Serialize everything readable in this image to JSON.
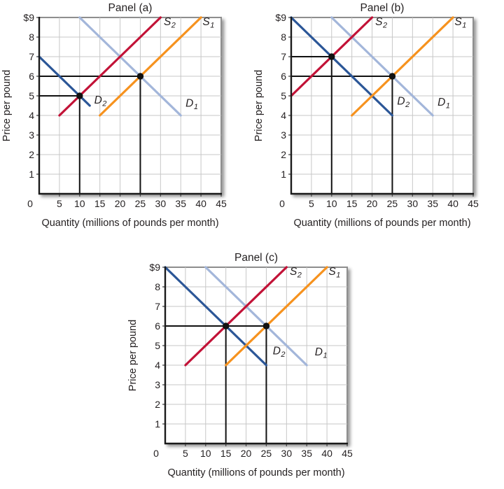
{
  "figure": {
    "description": "Three-panel supply and demand figure",
    "panel_titles": [
      "Panel (a)",
      "Panel (b)",
      "Panel (c)"
    ]
  },
  "colors": {
    "background": "#ffffff",
    "grid": "#c7c7c7",
    "plot_border": "#8e8e8e",
    "axis": "#1a1a1a",
    "reference_line": "#111111",
    "dot": "#111111",
    "text": "#231f20",
    "demand1_light_blue": "#a3b6da",
    "demand2_dark_blue": "#2b5697",
    "supply2_red": "#c21237",
    "supply1_orange": "#f6921e"
  },
  "chart_data": [
    {
      "type": "line",
      "title": "Panel (a)",
      "xlabel": "Quantity (millions of pounds per month)",
      "ylabel": "Price per pound",
      "xlim": [
        0,
        45
      ],
      "ylim": [
        0,
        9
      ],
      "grid": true,
      "xticks": [
        0,
        5,
        10,
        15,
        20,
        25,
        30,
        35,
        40,
        45
      ],
      "xtick_labels": [
        "0",
        "5",
        "10",
        "15",
        "20",
        "25",
        "30",
        "35",
        "40",
        "45"
      ],
      "yticks": [
        1,
        2,
        3,
        4,
        5,
        6,
        7,
        8,
        9
      ],
      "ytick_labels": [
        "1",
        "2",
        "3",
        "4",
        "5",
        "6",
        "7",
        "8",
        "$9"
      ],
      "series": [
        {
          "name": "D1",
          "label": {
            "base": "D",
            "sub": "1"
          },
          "color": "#a3b6da",
          "points": [
            [
              10,
              9
            ],
            [
              35,
              4
            ]
          ],
          "label_pos": [
            36.2,
            4.45
          ]
        },
        {
          "name": "D2",
          "label": {
            "base": "D",
            "sub": "2"
          },
          "color": "#2b5697",
          "points": [
            [
              0,
              7
            ],
            [
              12.5,
              4.5
            ]
          ],
          "label_pos": [
            13.6,
            4.6
          ]
        },
        {
          "name": "S2",
          "label": {
            "base": "S",
            "sub": "2"
          },
          "color": "#c21237",
          "points": [
            [
              5,
              4
            ],
            [
              30,
              9
            ]
          ],
          "label_pos": [
            30.8,
            8.6
          ]
        },
        {
          "name": "S1",
          "label": {
            "base": "S",
            "sub": "1"
          },
          "color": "#f6921e",
          "points": [
            [
              15,
              4
            ],
            [
              40,
              9
            ]
          ],
          "label_pos": [
            40.4,
            8.6
          ]
        }
      ],
      "equilibria": [
        {
          "x": 10,
          "y": 5
        },
        {
          "x": 25,
          "y": 6
        }
      ],
      "reference_lines": [
        {
          "type": "h",
          "y": 5,
          "x0": 0,
          "x1": 10
        },
        {
          "type": "v",
          "x": 10,
          "y0": 0,
          "y1": 5
        },
        {
          "type": "h",
          "y": 6,
          "x0": 0,
          "x1": 25
        },
        {
          "type": "v",
          "x": 25,
          "y0": 0,
          "y1": 6
        }
      ]
    },
    {
      "type": "line",
      "title": "Panel (b)",
      "xlabel": "Quantity (millions of pounds per month)",
      "ylabel": "Price per pound",
      "xlim": [
        0,
        45
      ],
      "ylim": [
        0,
        9
      ],
      "grid": true,
      "xticks": [
        0,
        5,
        10,
        15,
        20,
        25,
        30,
        35,
        40,
        45
      ],
      "xtick_labels": [
        "0",
        "5",
        "10",
        "15",
        "20",
        "25",
        "30",
        "35",
        "40",
        "45"
      ],
      "yticks": [
        1,
        2,
        3,
        4,
        5,
        6,
        7,
        8,
        9
      ],
      "ytick_labels": [
        "1",
        "2",
        "3",
        "4",
        "5",
        "6",
        "7",
        "8",
        "$9"
      ],
      "series": [
        {
          "name": "D1",
          "label": {
            "base": "D",
            "sub": "1"
          },
          "color": "#a3b6da",
          "points": [
            [
              10,
              9
            ],
            [
              35,
              4
            ]
          ],
          "label_pos": [
            36.2,
            4.5
          ]
        },
        {
          "name": "D2",
          "label": {
            "base": "D",
            "sub": "2"
          },
          "color": "#2b5697",
          "points": [
            [
              0,
              9
            ],
            [
              25,
              4
            ]
          ],
          "label_pos": [
            26.2,
            4.55
          ]
        },
        {
          "name": "S2",
          "label": {
            "base": "S",
            "sub": "2"
          },
          "color": "#c21237",
          "points": [
            [
              0,
              5
            ],
            [
              20,
              9
            ]
          ],
          "label_pos": [
            20.8,
            8.6
          ]
        },
        {
          "name": "S1",
          "label": {
            "base": "S",
            "sub": "1"
          },
          "color": "#f6921e",
          "points": [
            [
              15,
              4
            ],
            [
              40,
              9
            ]
          ],
          "label_pos": [
            40.4,
            8.6
          ]
        }
      ],
      "equilibria": [
        {
          "x": 10,
          "y": 7
        },
        {
          "x": 25,
          "y": 6
        }
      ],
      "reference_lines": [
        {
          "type": "h",
          "y": 7,
          "x0": 0,
          "x1": 10
        },
        {
          "type": "v",
          "x": 10,
          "y0": 0,
          "y1": 7
        },
        {
          "type": "h",
          "y": 6,
          "x0": 0,
          "x1": 25
        },
        {
          "type": "v",
          "x": 25,
          "y0": 0,
          "y1": 6
        }
      ]
    },
    {
      "type": "line",
      "title": "Panel (c)",
      "xlabel": "Quantity (millions of pounds per month)",
      "ylabel": "Price per pound",
      "xlim": [
        0,
        45
      ],
      "ylim": [
        0,
        9
      ],
      "grid": true,
      "xticks": [
        0,
        5,
        10,
        15,
        20,
        25,
        30,
        35,
        40,
        45
      ],
      "xtick_labels": [
        "0",
        "5",
        "10",
        "15",
        "20",
        "25",
        "30",
        "35",
        "40",
        "45"
      ],
      "yticks": [
        1,
        2,
        3,
        4,
        5,
        6,
        7,
        8,
        9
      ],
      "ytick_labels": [
        "1",
        "2",
        "3",
        "4",
        "5",
        "6",
        "7",
        "8",
        "$9"
      ],
      "series": [
        {
          "name": "D1",
          "label": {
            "base": "D",
            "sub": "1"
          },
          "color": "#a3b6da",
          "points": [
            [
              10,
              9
            ],
            [
              35,
              4
            ]
          ],
          "label_pos": [
            37.0,
            4.5
          ]
        },
        {
          "name": "D2",
          "label": {
            "base": "D",
            "sub": "2"
          },
          "color": "#2b5697",
          "points": [
            [
              0,
              9
            ],
            [
              25,
              4
            ]
          ],
          "label_pos": [
            26.6,
            4.55
          ]
        },
        {
          "name": "S2",
          "label": {
            "base": "S",
            "sub": "2"
          },
          "color": "#c21237",
          "points": [
            [
              5,
              4
            ],
            [
              30,
              9
            ]
          ],
          "label_pos": [
            30.8,
            8.6
          ]
        },
        {
          "name": "S1",
          "label": {
            "base": "S",
            "sub": "1"
          },
          "color": "#f6921e",
          "points": [
            [
              15,
              4
            ],
            [
              40,
              9
            ]
          ],
          "label_pos": [
            40.4,
            8.6
          ]
        }
      ],
      "equilibria": [
        {
          "x": 15,
          "y": 6
        },
        {
          "x": 25,
          "y": 6
        }
      ],
      "reference_lines": [
        {
          "type": "h",
          "y": 6,
          "x0": 0,
          "x1": 25
        },
        {
          "type": "v",
          "x": 15,
          "y0": 0,
          "y1": 6
        },
        {
          "type": "v",
          "x": 25,
          "y0": 0,
          "y1": 6
        }
      ]
    }
  ]
}
